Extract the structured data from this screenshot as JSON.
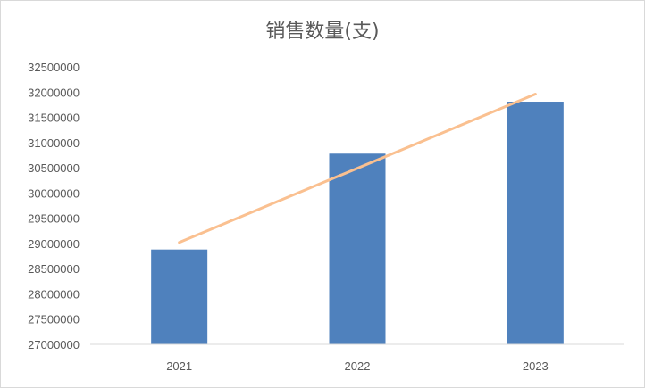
{
  "chart_data": {
    "type": "bar",
    "title": "销售数量(支)",
    "categories": [
      "2021",
      "2022",
      "2023"
    ],
    "values": [
      28880000,
      30780000,
      31810000
    ],
    "trendline": {
      "type": "linear",
      "values": [
        29020000,
        31960000
      ]
    },
    "ylim": [
      27000000,
      32500000
    ],
    "yticks": [
      "27000000",
      "27500000",
      "28000000",
      "28500000",
      "29000000",
      "29500000",
      "30000000",
      "30500000",
      "31000000",
      "31500000",
      "32000000",
      "32500000"
    ],
    "grid": false,
    "legend": "none",
    "colors": {
      "bar": "#4f81bd",
      "trendline": "#fac090",
      "axis": "#d9d9d9",
      "text": "#595959"
    }
  }
}
